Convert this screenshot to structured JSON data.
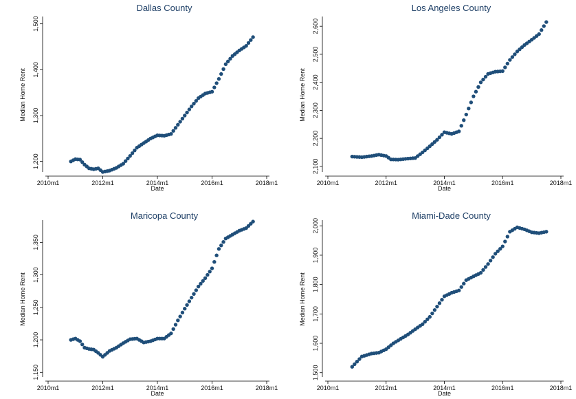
{
  "chart_data": [
    {
      "type": "scatter",
      "title": "Dallas County",
      "xlabel": "Date",
      "ylabel": "Median Home Rent",
      "x_tick_labels": [
        "2010m1",
        "2012m1",
        "2014m1",
        "2016m1",
        "2018m1"
      ],
      "xlim": [
        "2010m1",
        "2018m1"
      ],
      "y_ticks": [
        1200,
        1300,
        1400,
        1500
      ],
      "y_tick_labels": [
        "1,200",
        "1,300",
        "1,400",
        "1,500"
      ],
      "ylim": [
        1180,
        1510
      ],
      "color": "#1f4e79",
      "series_anchors": [
        [
          "2010m11",
          1200
        ],
        [
          "2011m1",
          1205
        ],
        [
          "2011m3",
          1204
        ],
        [
          "2011m5",
          1193
        ],
        [
          "2011m7",
          1185
        ],
        [
          "2011m9",
          1183
        ],
        [
          "2011m11",
          1185
        ],
        [
          "2012m1",
          1177
        ],
        [
          "2012m4",
          1180
        ],
        [
          "2012m7",
          1186
        ],
        [
          "2012m10",
          1195
        ],
        [
          "2013m1",
          1212
        ],
        [
          "2013m4",
          1230
        ],
        [
          "2013m7",
          1240
        ],
        [
          "2013m10",
          1250
        ],
        [
          "2014m1",
          1257
        ],
        [
          "2014m4",
          1256
        ],
        [
          "2014m7",
          1260
        ],
        [
          "2014m10",
          1280
        ],
        [
          "2015m1",
          1300
        ],
        [
          "2015m4",
          1320
        ],
        [
          "2015m7",
          1338
        ],
        [
          "2015m10",
          1348
        ],
        [
          "2016m1",
          1352
        ],
        [
          "2016m4",
          1380
        ],
        [
          "2016m7",
          1412
        ],
        [
          "2016m10",
          1430
        ],
        [
          "2017m1",
          1442
        ],
        [
          "2017m4",
          1452
        ],
        [
          "2017m7",
          1471
        ]
      ]
    },
    {
      "type": "scatter",
      "title": "Los Angeles County",
      "xlabel": "Date",
      "ylabel": "Median Home Rent",
      "x_tick_labels": [
        "2010m1",
        "2012m1",
        "2014m1",
        "2016m1",
        "2018m1"
      ],
      "xlim": [
        "2010m1",
        "2018m1"
      ],
      "y_ticks": [
        2100,
        2200,
        2300,
        2400,
        2500,
        2600
      ],
      "y_tick_labels": [
        "2,100",
        "2,200",
        "2,300",
        "2,400",
        "2,500",
        "2,600"
      ],
      "ylim": [
        2085,
        2625
      ],
      "color": "#1f4e79",
      "series_anchors": [
        [
          "2010m11",
          2135
        ],
        [
          "2011m3",
          2133
        ],
        [
          "2011m7",
          2137
        ],
        [
          "2011m10",
          2142
        ],
        [
          "2012m1",
          2137
        ],
        [
          "2012m3",
          2125
        ],
        [
          "2012m6",
          2124
        ],
        [
          "2012m9",
          2127
        ],
        [
          "2013m1",
          2130
        ],
        [
          "2013m4",
          2150
        ],
        [
          "2013m7",
          2172
        ],
        [
          "2013m10",
          2195
        ],
        [
          "2014m1",
          2222
        ],
        [
          "2014m4",
          2216
        ],
        [
          "2014m7",
          2225
        ],
        [
          "2014m10",
          2285
        ],
        [
          "2015m1",
          2350
        ],
        [
          "2015m4",
          2400
        ],
        [
          "2015m7",
          2430
        ],
        [
          "2015m10",
          2438
        ],
        [
          "2016m1",
          2440
        ],
        [
          "2016m4",
          2480
        ],
        [
          "2016m7",
          2510
        ],
        [
          "2016m10",
          2533
        ],
        [
          "2017m1",
          2552
        ],
        [
          "2017m4",
          2572
        ],
        [
          "2017m7",
          2615
        ]
      ]
    },
    {
      "type": "scatter",
      "title": "Maricopa County",
      "xlabel": "Date",
      "ylabel": "Median Home Rent",
      "x_tick_labels": [
        "2010m1",
        "2012m1",
        "2014m1",
        "2016m1",
        "2018m1"
      ],
      "xlim": [
        "2010m1",
        "2018m1"
      ],
      "y_ticks": [
        1150,
        1200,
        1250,
        1300,
        1350
      ],
      "y_tick_labels": [
        "1,150",
        "1,200",
        "1,250",
        "1,300",
        "1,350"
      ],
      "ylim": [
        1145,
        1380
      ],
      "color": "#1f4e79",
      "series_anchors": [
        [
          "2010m11",
          1200
        ],
        [
          "2011m1",
          1202
        ],
        [
          "2011m3",
          1198
        ],
        [
          "2011m5",
          1188
        ],
        [
          "2011m7",
          1186
        ],
        [
          "2011m9",
          1185
        ],
        [
          "2011m11",
          1180
        ],
        [
          "2012m1",
          1174
        ],
        [
          "2012m4",
          1183
        ],
        [
          "2012m7",
          1188
        ],
        [
          "2012m10",
          1195
        ],
        [
          "2013m1",
          1201
        ],
        [
          "2013m4",
          1202
        ],
        [
          "2013m7",
          1196
        ],
        [
          "2013m10",
          1198
        ],
        [
          "2014m1",
          1202
        ],
        [
          "2014m4",
          1202
        ],
        [
          "2014m7",
          1210
        ],
        [
          "2014m10",
          1230
        ],
        [
          "2015m1",
          1248
        ],
        [
          "2015m4",
          1265
        ],
        [
          "2015m7",
          1282
        ],
        [
          "2015m10",
          1295
        ],
        [
          "2016m1",
          1310
        ],
        [
          "2016m4",
          1340
        ],
        [
          "2016m7",
          1356
        ],
        [
          "2016m10",
          1362
        ],
        [
          "2017m1",
          1368
        ],
        [
          "2017m4",
          1372
        ],
        [
          "2017m7",
          1382
        ]
      ]
    },
    {
      "type": "scatter",
      "title": "Miami-Dade County",
      "xlabel": "Date",
      "ylabel": "Median Home Rent",
      "x_tick_labels": [
        "2010m1",
        "2012m1",
        "2014m1",
        "2016m1",
        "2018m1"
      ],
      "xlim": [
        "2010m1",
        "2018m1"
      ],
      "y_ticks": [
        1500,
        1600,
        1700,
        1800,
        1900,
        2000
      ],
      "y_tick_labels": [
        "1,500",
        "1,600",
        "1,700",
        "1,800",
        "1,900",
        "2,000"
      ],
      "ylim": [
        1490,
        2010
      ],
      "color": "#1f4e79",
      "series_anchors": [
        [
          "2010m11",
          1520
        ],
        [
          "2011m3",
          1555
        ],
        [
          "2011m7",
          1565
        ],
        [
          "2011m10",
          1568
        ],
        [
          "2012m1",
          1580
        ],
        [
          "2012m4",
          1600
        ],
        [
          "2012m7",
          1615
        ],
        [
          "2012m10",
          1630
        ],
        [
          "2013m1",
          1648
        ],
        [
          "2013m4",
          1665
        ],
        [
          "2013m7",
          1690
        ],
        [
          "2013m10",
          1725
        ],
        [
          "2014m1",
          1760
        ],
        [
          "2014m4",
          1772
        ],
        [
          "2014m7",
          1780
        ],
        [
          "2014m10",
          1815
        ],
        [
          "2015m1",
          1828
        ],
        [
          "2015m4",
          1840
        ],
        [
          "2015m7",
          1870
        ],
        [
          "2015m10",
          1905
        ],
        [
          "2016m1",
          1930
        ],
        [
          "2016m4",
          1980
        ],
        [
          "2016m7",
          1995
        ],
        [
          "2016m10",
          1988
        ],
        [
          "2017m1",
          1978
        ],
        [
          "2017m4",
          1975
        ],
        [
          "2017m7",
          1980
        ]
      ]
    }
  ]
}
